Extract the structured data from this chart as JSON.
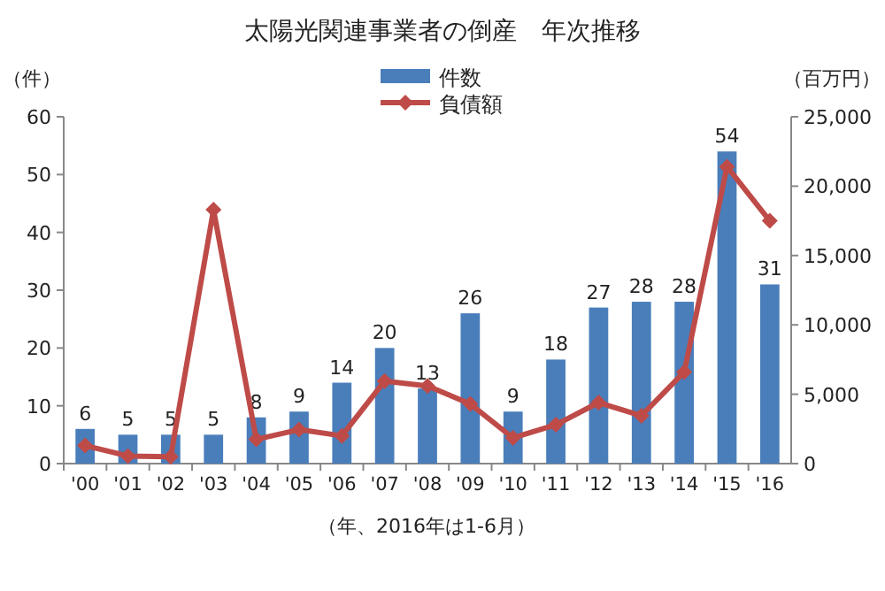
{
  "chart_data": {
    "type": "bar",
    "title": "太陽光関連事業者の倒産　年次推移",
    "xlabel": "（年、2016年は1-6月）",
    "ylabel": "（件）",
    "y2label": "（百万円）",
    "categories": [
      "'00",
      "'01",
      "'02",
      "'03",
      "'04",
      "'05",
      "'06",
      "'07",
      "'08",
      "'09",
      "'10",
      "'11",
      "'12",
      "'13",
      "'14",
      "'15",
      "'16"
    ],
    "series": [
      {
        "name": "件数",
        "color": "#4a7ebb",
        "values": [
          6,
          5,
          5,
          5,
          8,
          9,
          14,
          20,
          13,
          26,
          9,
          18,
          27,
          28,
          28,
          54,
          31
        ],
        "value_labels": [
          "6",
          "5",
          "5",
          "5",
          "8",
          "9",
          "14",
          "20",
          "13",
          "26",
          "9",
          "18",
          "27",
          "28",
          "28",
          "54",
          "31"
        ]
      },
      {
        "name": "負債額",
        "type": "line",
        "axis": "y2",
        "color": "#be4b48",
        "marker": "diamond",
        "values": [
          1300,
          550,
          500,
          18300,
          1750,
          2450,
          2000,
          5950,
          5600,
          4300,
          1850,
          2800,
          4400,
          3450,
          6600,
          21400,
          17500
        ]
      }
    ],
    "ylim": [
      0,
      60
    ],
    "yticks": [
      0,
      10,
      20,
      30,
      40,
      50,
      60
    ],
    "y2lim": [
      0,
      25000
    ],
    "y2ticks": [
      0,
      {
        "value": 5000,
        "label": "5,000"
      },
      {
        "value": 10000,
        "label": "10,000"
      },
      {
        "value": 15000,
        "label": "15,000"
      },
      {
        "value": 20000,
        "label": "20,000"
      },
      {
        "value": 25000,
        "label": "25,000"
      }
    ],
    "legend": "top",
    "grid": false
  }
}
